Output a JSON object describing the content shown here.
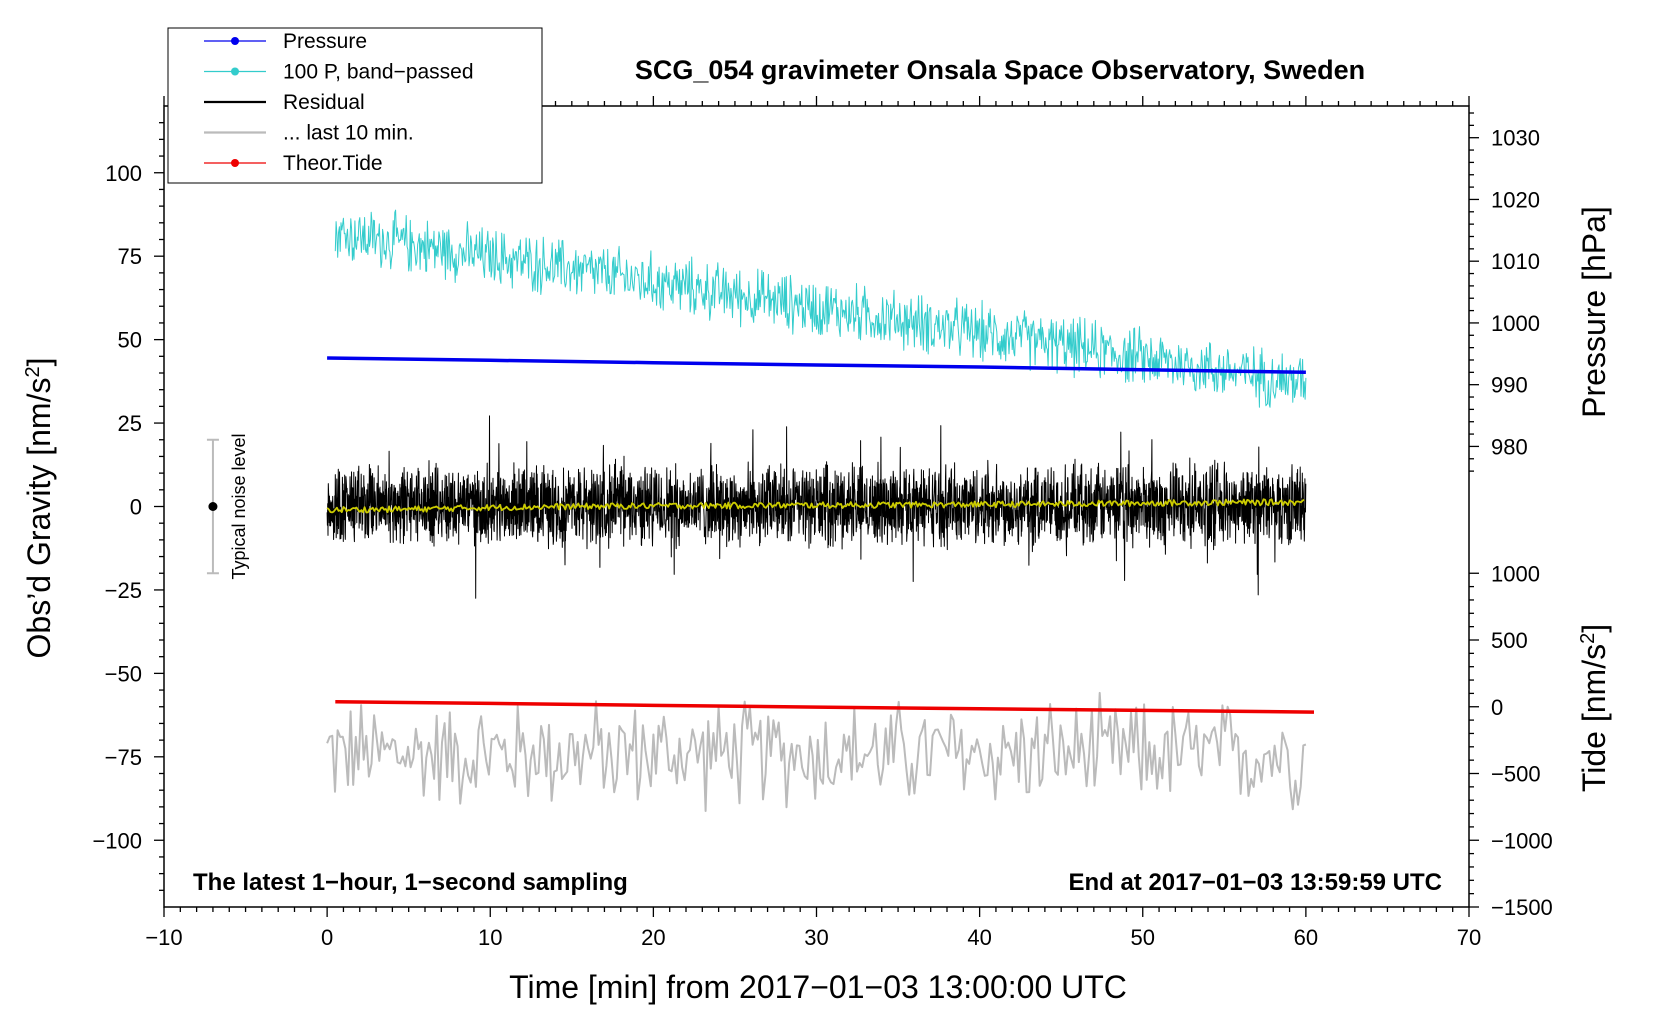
{
  "chart_data": {
    "type": "line",
    "title": "SCG_054 gravimeter Onsala Space Observatory, Sweden",
    "xlabel": "Time [min] from 2017−01−03 13:00:00 UTC",
    "ylabel_left": "Obs’d Gravity [nm/s",
    "ylabel_left_sup": "2",
    "ylabel_left_tail": "]",
    "ylabel_right_pressure": "Pressure [hPa]",
    "ylabel_right_tide": "Tide [nm/s",
    "ylabel_right_tide_sup": "2",
    "ylabel_right_tide_tail": "]",
    "xlim": [
      -10,
      70
    ],
    "ylim_left": [
      -120,
      120
    ],
    "x_ticks": [
      {
        "v": -10,
        "label": "−10"
      },
      {
        "v": 0,
        "label": "0"
      },
      {
        "v": 10,
        "label": "10"
      },
      {
        "v": 20,
        "label": "20"
      },
      {
        "v": 30,
        "label": "30"
      },
      {
        "v": 40,
        "label": "40"
      },
      {
        "v": 50,
        "label": "50"
      },
      {
        "v": 60,
        "label": "60"
      },
      {
        "v": 70,
        "label": "70"
      }
    ],
    "y_ticks_left": [
      {
        "v": 100,
        "label": "100"
      },
      {
        "v": 75,
        "label": "75"
      },
      {
        "v": 50,
        "label": "50"
      },
      {
        "v": 25,
        "label": "25"
      },
      {
        "v": 0,
        "label": "0"
      },
      {
        "v": -25,
        "label": "−25"
      },
      {
        "v": -50,
        "label": "−50"
      },
      {
        "v": -75,
        "label": "−75"
      },
      {
        "v": -100,
        "label": "−100"
      }
    ],
    "pressure_axis": {
      "ticks": [
        {
          "v": 1030,
          "label": "1030"
        },
        {
          "v": 1020,
          "label": "1020"
        },
        {
          "v": 1010,
          "label": "1010"
        },
        {
          "v": 1000,
          "label": "1000"
        },
        {
          "v": 990,
          "label": "990"
        },
        {
          "v": 980,
          "label": "980"
        }
      ],
      "ref_hpa": 1000,
      "ref_left": 55,
      "left_per_hpa": 1.85
    },
    "tide_axis": {
      "ticks": [
        {
          "v": 1000,
          "label": "1000"
        },
        {
          "v": 500,
          "label": "500"
        },
        {
          "v": 0,
          "label": "0"
        },
        {
          "v": -500,
          "label": "−500"
        },
        {
          "v": -1000,
          "label": "−1000"
        },
        {
          "v": -1500,
          "label": "−1500"
        }
      ],
      "ref_nms2": 0,
      "ref_left": -60,
      "left_per_unit": 0.04
    },
    "legend": [
      {
        "label": "Pressure",
        "color": "#0000ee",
        "marker": true
      },
      {
        "label": "100 P, band−passed",
        "color": "#33cccc",
        "marker": true
      },
      {
        "label": "Residual",
        "color": "#000000",
        "marker": false
      },
      {
        "label": "... last 10 min.",
        "color": "#bbbbbb",
        "marker": false
      },
      {
        "label": "Theor.Tide",
        "color": "#ee0000",
        "marker": true
      }
    ],
    "annotations": {
      "noise_label": "Typical noise level",
      "noise_x": -7,
      "noise_range": [
        -20,
        20
      ],
      "bottom_left": "The latest 1−hour, 1−second sampling",
      "bottom_right": "End at 2017−01−03 13:59:59 UTC"
    },
    "series": [
      {
        "name": "Pressure",
        "axis": "left",
        "color": "#0000ee",
        "x": [
          0,
          10,
          20,
          30,
          40,
          50,
          60
        ],
        "y": [
          44.5,
          43.8,
          43.1,
          42.4,
          41.8,
          41.0,
          40.2
        ]
      },
      {
        "name": "100 P, band−passed",
        "axis": "left",
        "color": "#33cccc",
        "x_range": [
          0.5,
          60
        ],
        "trend_start": 82,
        "trend_end": 37,
        "amplitude": 7
      },
      {
        "name": "Residual",
        "axis": "left",
        "color": "#000000",
        "x_range": [
          0,
          60
        ],
        "mean": 0.5,
        "amplitude": 12
      },
      {
        "name": "Residual smoothed",
        "axis": "left",
        "color": "#cccc00",
        "x": [
          0,
          5,
          10,
          15,
          20,
          25,
          30,
          35,
          40,
          45,
          50,
          55,
          60
        ],
        "y": [
          -1,
          -0.8,
          -0.3,
          0,
          0.2,
          0.3,
          0.4,
          0.5,
          0.6,
          0.8,
          1.0,
          1.2,
          1.3
        ]
      },
      {
        "name": "... last 10 min.",
        "axis": "left",
        "color": "#bbbbbb",
        "x_range": [
          0,
          60
        ],
        "mean": -74,
        "amplitude": 10
      },
      {
        "name": "Theor.Tide",
        "axis": "left",
        "color": "#ee0000",
        "x": [
          0.5,
          10,
          20,
          30,
          40,
          50,
          60.5
        ],
        "y": [
          -58.5,
          -59.0,
          -59.6,
          -60.1,
          -60.6,
          -61.1,
          -61.6
        ]
      }
    ]
  }
}
